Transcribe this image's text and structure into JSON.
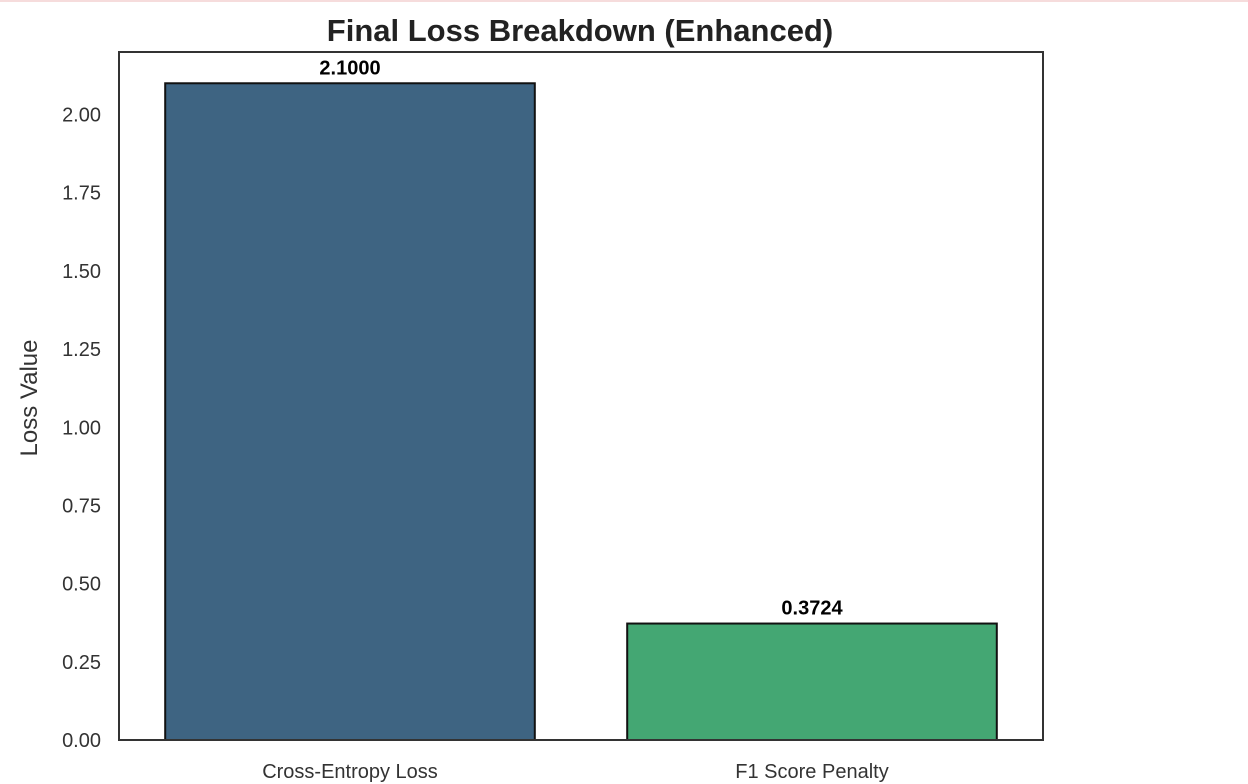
{
  "chart_data": {
    "type": "bar",
    "title": "Final Loss Breakdown (Enhanced)",
    "xlabel": "",
    "ylabel": "Loss Value",
    "categories": [
      "Cross-Entropy Loss",
      "F1 Score Penalty"
    ],
    "values": [
      2.1,
      0.3724
    ],
    "data_labels": [
      "2.1000",
      "0.3724"
    ],
    "colors": [
      "#3e6482",
      "#44a773"
    ],
    "edge_color": "#111111",
    "ylim": [
      0,
      2.2
    ],
    "yticks": [
      0,
      0.25,
      0.5,
      0.75,
      1.0,
      1.25,
      1.5,
      1.75,
      2.0
    ],
    "ytick_labels": [
      "0.00",
      "0.25",
      "0.50",
      "0.75",
      "1.00",
      "1.25",
      "1.50",
      "1.75",
      "2.00"
    ],
    "grid": false,
    "legend": "none"
  }
}
